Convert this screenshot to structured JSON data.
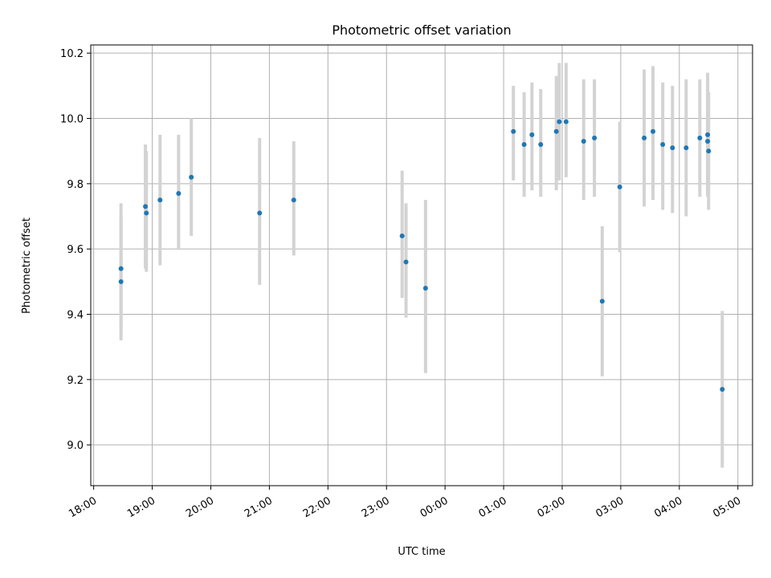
{
  "chart_data": {
    "type": "scatter",
    "title": "Photometric offset variation",
    "xlabel": "UTC time",
    "ylabel": "Photometric offset",
    "grid": true,
    "ylim": [
      8.875,
      10.225
    ],
    "xlim": [
      "17:57",
      "05:15"
    ],
    "x_tick_labels": [
      "18:00",
      "19:00",
      "20:00",
      "21:00",
      "22:00",
      "23:00",
      "00:00",
      "01:00",
      "02:00",
      "03:00",
      "04:00",
      "05:00"
    ],
    "y_tick_labels": [
      "9.0",
      "9.2",
      "9.4",
      "9.6",
      "9.8",
      "10.0",
      "10.2"
    ],
    "y_ticks": [
      9.0,
      9.2,
      9.4,
      9.6,
      9.8,
      10.0,
      10.2
    ],
    "colors": {
      "points": "#1f77b4",
      "error_bars": "#d3d3d3",
      "grid": "#b0b0b0"
    },
    "series": [
      {
        "values": [
          {
            "x": "18:28",
            "y": 9.54,
            "err_low": 9.34,
            "err_high": 9.74
          },
          {
            "x": "18:28",
            "y": 9.5,
            "err_low": 9.32,
            "err_high": 9.7
          },
          {
            "x": "18:53",
            "y": 9.73,
            "err_low": 9.54,
            "err_high": 9.92
          },
          {
            "x": "18:54",
            "y": 9.71,
            "err_low": 9.53,
            "err_high": 9.9
          },
          {
            "x": "19:08",
            "y": 9.75,
            "err_low": 9.55,
            "err_high": 9.95
          },
          {
            "x": "19:27",
            "y": 9.77,
            "err_low": 9.6,
            "err_high": 9.95
          },
          {
            "x": "19:40",
            "y": 9.82,
            "err_low": 9.64,
            "err_high": 10.0
          },
          {
            "x": "20:50",
            "y": 9.71,
            "err_low": 9.49,
            "err_high": 9.94
          },
          {
            "x": "21:25",
            "y": 9.75,
            "err_low": 9.58,
            "err_high": 9.93
          },
          {
            "x": "23:16",
            "y": 9.64,
            "err_low": 9.45,
            "err_high": 9.84
          },
          {
            "x": "23:20",
            "y": 9.56,
            "err_low": 9.39,
            "err_high": 9.74
          },
          {
            "x": "23:40",
            "y": 9.48,
            "err_low": 9.22,
            "err_high": 9.75
          },
          {
            "x": "01:10",
            "y": 9.96,
            "err_low": 9.81,
            "err_high": 10.1
          },
          {
            "x": "01:21",
            "y": 9.92,
            "err_low": 9.76,
            "err_high": 10.08
          },
          {
            "x": "01:29",
            "y": 9.95,
            "err_low": 9.78,
            "err_high": 10.11
          },
          {
            "x": "01:38",
            "y": 9.92,
            "err_low": 9.76,
            "err_high": 10.09
          },
          {
            "x": "01:54",
            "y": 9.96,
            "err_low": 9.78,
            "err_high": 10.13
          },
          {
            "x": "01:57",
            "y": 9.99,
            "err_low": 9.81,
            "err_high": 10.17
          },
          {
            "x": "02:04",
            "y": 9.99,
            "err_low": 9.82,
            "err_high": 10.17
          },
          {
            "x": "02:22",
            "y": 9.93,
            "err_low": 9.75,
            "err_high": 10.12
          },
          {
            "x": "02:33",
            "y": 9.94,
            "err_low": 9.76,
            "err_high": 10.12
          },
          {
            "x": "02:41",
            "y": 9.44,
            "err_low": 9.21,
            "err_high": 9.67
          },
          {
            "x": "02:59",
            "y": 9.79,
            "err_low": 9.59,
            "err_high": 9.99
          },
          {
            "x": "03:24",
            "y": 9.94,
            "err_low": 9.73,
            "err_high": 10.15
          },
          {
            "x": "03:33",
            "y": 9.96,
            "err_low": 9.75,
            "err_high": 10.16
          },
          {
            "x": "03:43",
            "y": 9.92,
            "err_low": 9.72,
            "err_high": 10.11
          },
          {
            "x": "03:53",
            "y": 9.91,
            "err_low": 9.71,
            "err_high": 10.1
          },
          {
            "x": "04:07",
            "y": 9.91,
            "err_low": 9.7,
            "err_high": 10.12
          },
          {
            "x": "04:21",
            "y": 9.94,
            "err_low": 9.76,
            "err_high": 10.12
          },
          {
            "x": "04:29",
            "y": 9.95,
            "err_low": 9.76,
            "err_high": 10.14
          },
          {
            "x": "04:29",
            "y": 9.93,
            "err_low": 9.77,
            "err_high": 10.09
          },
          {
            "x": "04:30",
            "y": 9.9,
            "err_low": 9.72,
            "err_high": 10.08
          },
          {
            "x": "04:44",
            "y": 9.17,
            "err_low": 8.93,
            "err_high": 9.41
          }
        ]
      }
    ]
  }
}
